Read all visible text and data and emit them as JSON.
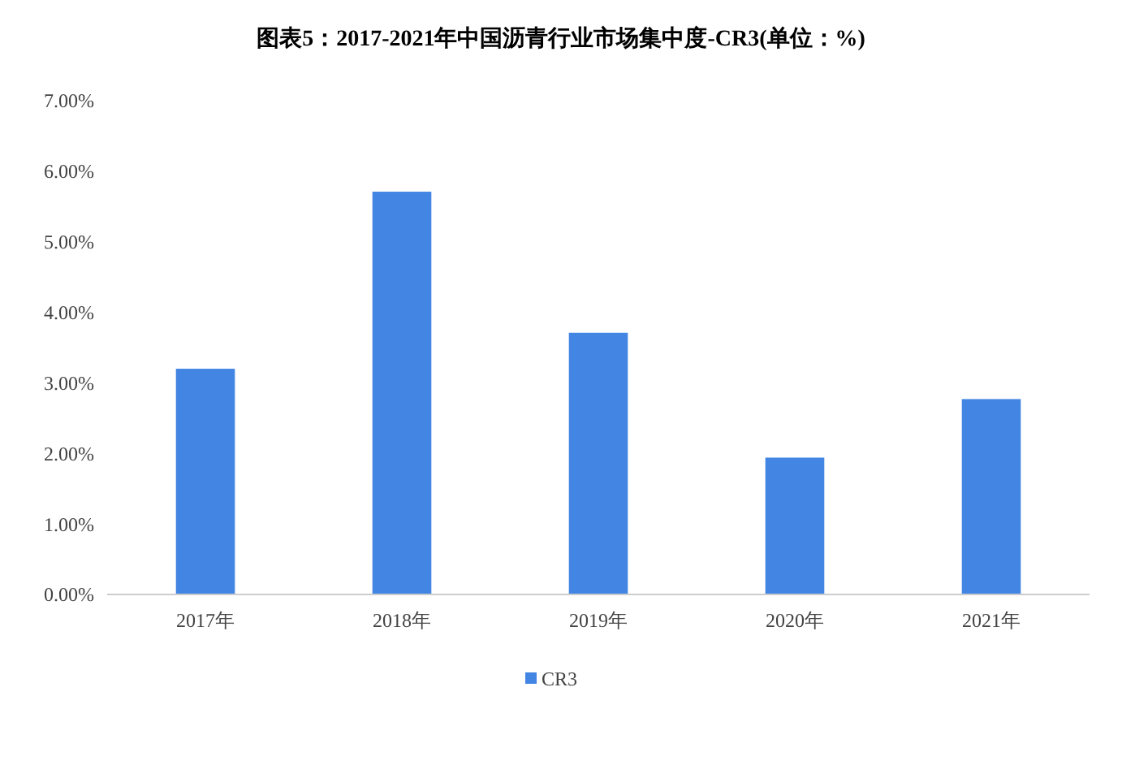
{
  "chart_data": {
    "type": "bar",
    "title": "图表5：2017-2021年中国沥青行业市场集中度-CR3(单位：%)",
    "categories": [
      "2017年",
      "2018年",
      "2019年",
      "2020年",
      "2021年"
    ],
    "series": [
      {
        "name": "CR3",
        "color": "#4285e3",
        "values": [
          3.2,
          5.71,
          3.71,
          1.94,
          2.77
        ]
      }
    ],
    "ylim": [
      0,
      7
    ],
    "yticks": [
      {
        "value": 0,
        "label": "0.00%"
      },
      {
        "value": 1,
        "label": "1.00%"
      },
      {
        "value": 2,
        "label": "2.00%"
      },
      {
        "value": 3,
        "label": "3.00%"
      },
      {
        "value": 4,
        "label": "4.00%"
      },
      {
        "value": 5,
        "label": "5.00%"
      },
      {
        "value": 6,
        "label": "6.00%"
      },
      {
        "value": 7,
        "label": "7.00%"
      }
    ],
    "grid": false,
    "legend": "bottom"
  }
}
